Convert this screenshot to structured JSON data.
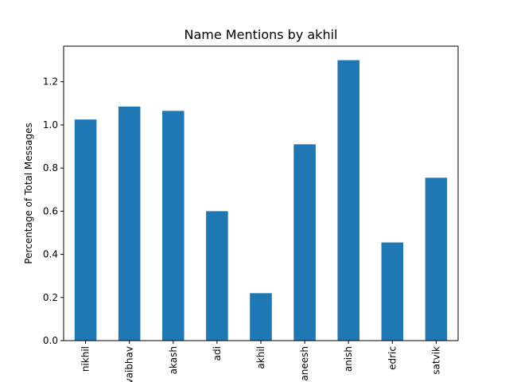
{
  "chart_data": {
    "type": "bar",
    "title": "Name Mentions by akhil",
    "xlabel": "",
    "ylabel": "Percentage of Total Messages",
    "categories": [
      "nikhil",
      "vaibhav",
      "akash",
      "adi",
      "akhil",
      "aneesh",
      "anish",
      "edric",
      "satvik"
    ],
    "values": [
      1.025,
      1.085,
      1.065,
      0.6,
      0.22,
      0.91,
      1.3,
      0.455,
      0.755
    ],
    "ylim": [
      0,
      1.365
    ],
    "yticks": [
      0.0,
      0.2,
      0.4,
      0.6,
      0.8,
      1.0,
      1.2
    ],
    "ytick_labels": [
      "0.0",
      "0.2",
      "0.4",
      "0.6",
      "0.8",
      "1.0",
      "1.2"
    ],
    "bar_color": "#1f77b4",
    "grid": false,
    "legend": "none"
  }
}
